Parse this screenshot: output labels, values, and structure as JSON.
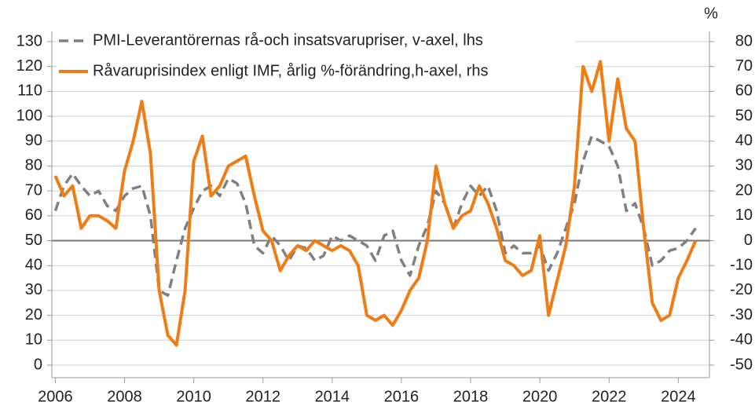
{
  "chart_data": {
    "type": "line",
    "y2label": "%",
    "x": [
      2006.0,
      2006.25,
      2006.5,
      2006.75,
      2007.0,
      2007.25,
      2007.5,
      2007.75,
      2008.0,
      2008.25,
      2008.5,
      2008.75,
      2009.0,
      2009.25,
      2009.5,
      2009.75,
      2010.0,
      2010.25,
      2010.5,
      2010.75,
      2011.0,
      2011.25,
      2011.5,
      2011.75,
      2012.0,
      2012.25,
      2012.5,
      2012.75,
      2013.0,
      2013.25,
      2013.5,
      2013.75,
      2014.0,
      2014.25,
      2014.5,
      2014.75,
      2015.0,
      2015.25,
      2015.5,
      2015.75,
      2016.0,
      2016.25,
      2016.5,
      2016.75,
      2017.0,
      2017.25,
      2017.5,
      2017.75,
      2018.0,
      2018.25,
      2018.5,
      2018.75,
      2019.0,
      2019.25,
      2019.5,
      2019.75,
      2020.0,
      2020.25,
      2020.5,
      2020.75,
      2021.0,
      2021.25,
      2021.5,
      2021.75,
      2022.0,
      2022.25,
      2022.5,
      2022.75,
      2023.0,
      2023.25,
      2023.5,
      2023.75,
      2024.0,
      2024.25,
      2024.5
    ],
    "series": [
      {
        "name": "PMI-Leverantörernas rå-och insatsvarupriser, v-axel, lhs",
        "color": "#808080",
        "dashed": true,
        "axis": "y",
        "values": [
          62,
          72,
          77,
          72,
          68,
          70,
          64,
          62,
          68,
          71,
          72,
          60,
          30,
          28,
          42,
          55,
          63,
          70,
          72,
          68,
          75,
          73,
          65,
          48,
          45,
          52,
          48,
          42,
          48,
          47,
          42,
          44,
          52,
          50,
          52,
          50,
          48,
          42,
          52,
          54,
          42,
          36,
          48,
          56,
          70,
          65,
          55,
          65,
          72,
          68,
          72,
          62,
          45,
          48,
          45,
          45,
          48,
          38,
          45,
          55,
          65,
          82,
          92,
          90,
          88,
          80,
          62,
          65,
          55,
          40,
          42,
          46,
          47,
          50,
          55
        ]
      },
      {
        "name": "Råvaruprisindex enligt IMF, årlig %-förändring,h-axel, rhs",
        "color": "#f07d14",
        "dashed": false,
        "axis": "y2",
        "values": [
          26,
          18,
          22,
          5,
          10,
          10,
          8,
          5,
          28,
          40,
          56,
          35,
          -20,
          -38,
          -42,
          -20,
          32,
          42,
          18,
          22,
          30,
          32,
          34,
          18,
          4,
          0,
          -12,
          -6,
          -2,
          -4,
          0,
          -2,
          -4,
          -2,
          -4,
          -10,
          -30,
          -32,
          -30,
          -34,
          -28,
          -20,
          -15,
          0,
          30,
          15,
          5,
          10,
          12,
          22,
          15,
          5,
          -8,
          -10,
          -14,
          -12,
          2,
          -30,
          -16,
          -2,
          22,
          70,
          60,
          72,
          40,
          65,
          45,
          40,
          5,
          -25,
          -32,
          -30,
          -15,
          -8,
          0
        ]
      }
    ],
    "xlim": [
      2005.9,
      2024.9
    ],
    "xticks": [
      2006,
      2008,
      2010,
      2012,
      2014,
      2016,
      2018,
      2020,
      2022,
      2024
    ],
    "ylim": [
      0,
      130
    ],
    "yticks": [
      0,
      10,
      20,
      30,
      40,
      50,
      60,
      70,
      80,
      90,
      100,
      110,
      120,
      130
    ],
    "y2lim": [
      -50,
      80
    ],
    "y2ticks": [
      -50,
      -40,
      -30,
      -20,
      -10,
      0,
      10,
      20,
      30,
      40,
      50,
      60,
      70,
      80
    ],
    "zero_line_y2": 0,
    "grid": true,
    "legend": "upper left"
  }
}
